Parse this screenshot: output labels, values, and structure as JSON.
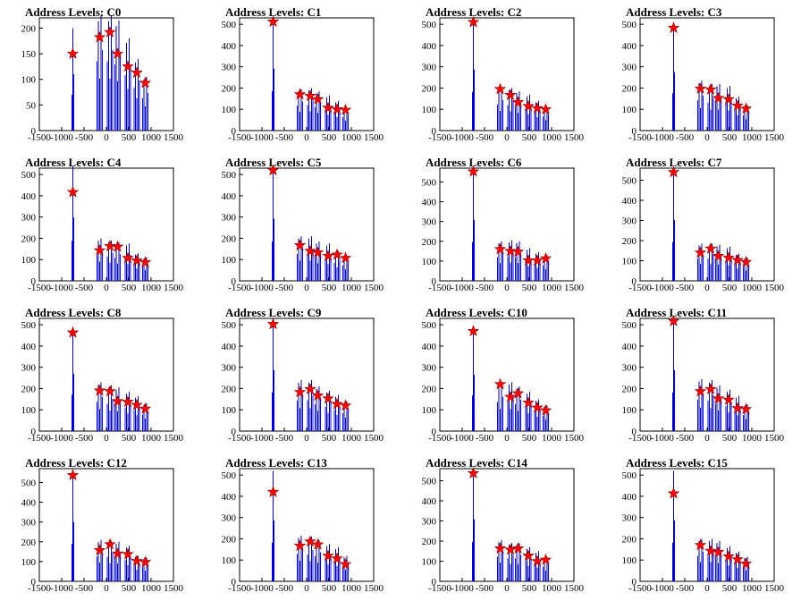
{
  "colors": {
    "spike": "#0000ff",
    "marker": "#ff0000",
    "marker_edge": "#8b0000",
    "axis": "#000000",
    "thin_spike": "#000080"
  },
  "chart_data": [
    {
      "type": "bar",
      "title": "Address Levels: C0",
      "xlim": [
        -1500,
        1500
      ],
      "ylim": [
        0,
        220
      ],
      "yticks": [
        0,
        50,
        100,
        150,
        200
      ],
      "xticks": [
        -1500,
        -1000,
        -500,
        0,
        500,
        1000,
        1500
      ],
      "spike_x": [
        -750,
        -150,
        80,
        250,
        480,
        680,
        870
      ],
      "peaks": [
        200,
        225,
        225,
        215,
        180,
        140,
        105
      ],
      "markers": [
        150,
        182,
        192,
        150,
        125,
        113,
        93
      ]
    },
    {
      "type": "bar",
      "title": "Address Levels: C1",
      "xlim": [
        -1500,
        1500
      ],
      "ylim": [
        0,
        530
      ],
      "yticks": [
        0,
        100,
        200,
        300,
        400,
        500
      ],
      "xticks": [
        -1500,
        -1000,
        -500,
        0,
        500,
        1000,
        1500
      ],
      "spike_x": [
        -750,
        -150,
        80,
        250,
        480,
        680,
        870
      ],
      "peaks": [
        530,
        195,
        200,
        185,
        165,
        140,
        105
      ],
      "markers": [
        512,
        170,
        163,
        147,
        107,
        100,
        97
      ]
    },
    {
      "type": "bar",
      "title": "Address Levels: C2",
      "xlim": [
        -1500,
        1500
      ],
      "ylim": [
        0,
        530
      ],
      "yticks": [
        0,
        100,
        200,
        300,
        400,
        500
      ],
      "xticks": [
        -1500,
        -1000,
        -500,
        0,
        500,
        1000,
        1500
      ],
      "spike_x": [
        -750,
        -150,
        80,
        250,
        480,
        680,
        870
      ],
      "peaks": [
        520,
        205,
        200,
        185,
        170,
        140,
        110
      ],
      "markers": [
        510,
        195,
        167,
        133,
        115,
        105,
        100
      ]
    },
    {
      "type": "bar",
      "title": "Address Levels: C3",
      "xlim": [
        -1500,
        1500
      ],
      "ylim": [
        0,
        530
      ],
      "yticks": [
        0,
        100,
        200,
        300,
        400,
        500
      ],
      "xticks": [
        -1500,
        -1000,
        -500,
        0,
        500,
        1000,
        1500
      ],
      "spike_x": [
        -750,
        -150,
        80,
        250,
        480,
        680,
        870
      ],
      "peaks": [
        500,
        235,
        220,
        220,
        210,
        160,
        120
      ],
      "markers": [
        483,
        197,
        193,
        153,
        147,
        117,
        103
      ]
    },
    {
      "type": "bar",
      "title": "Address Levels: C4",
      "xlim": [
        -1500,
        1500
      ],
      "ylim": [
        0,
        530
      ],
      "yticks": [
        0,
        100,
        200,
        300,
        400,
        500
      ],
      "xticks": [
        -1500,
        -1000,
        -500,
        0,
        500,
        1000,
        1500
      ],
      "spike_x": [
        -750,
        -150,
        80,
        250,
        480,
        680,
        870
      ],
      "peaks": [
        540,
        200,
        190,
        180,
        175,
        130,
        110
      ],
      "markers": [
        417,
        143,
        163,
        160,
        107,
        95,
        87
      ]
    },
    {
      "type": "bar",
      "title": "Address Levels: C5",
      "xlim": [
        -1500,
        1500
      ],
      "ylim": [
        0,
        530
      ],
      "yticks": [
        0,
        100,
        200,
        300,
        400,
        500
      ],
      "xticks": [
        -1500,
        -1000,
        -500,
        0,
        500,
        1000,
        1500
      ],
      "spike_x": [
        -750,
        -150,
        80,
        250,
        480,
        680,
        870
      ],
      "peaks": [
        530,
        210,
        210,
        185,
        175,
        140,
        120
      ],
      "markers": [
        520,
        167,
        140,
        133,
        117,
        123,
        107
      ]
    },
    {
      "type": "bar",
      "title": "Address Levels: C6",
      "xlim": [
        -1500,
        1500
      ],
      "ylim": [
        0,
        570
      ],
      "yticks": [
        0,
        100,
        200,
        300,
        400,
        500
      ],
      "xticks": [
        -1500,
        -1000,
        -500,
        0,
        500,
        1000,
        1500
      ],
      "spike_x": [
        -750,
        -150,
        80,
        250,
        480,
        680,
        870
      ],
      "peaks": [
        560,
        200,
        205,
        200,
        165,
        145,
        130
      ],
      "markers": [
        553,
        160,
        150,
        147,
        103,
        103,
        113
      ]
    },
    {
      "type": "bar",
      "title": "Address Levels: C7",
      "xlim": [
        -1500,
        1500
      ],
      "ylim": [
        0,
        560
      ],
      "yticks": [
        0,
        100,
        200,
        300,
        400,
        500
      ],
      "xticks": [
        -1500,
        -1000,
        -500,
        0,
        500,
        1000,
        1500
      ],
      "spike_x": [
        -750,
        -150,
        80,
        250,
        480,
        680,
        870
      ],
      "peaks": [
        550,
        185,
        185,
        180,
        170,
        135,
        115
      ],
      "markers": [
        540,
        140,
        160,
        123,
        115,
        103,
        93
      ]
    },
    {
      "type": "bar",
      "title": "Address Levels: C8",
      "xlim": [
        -1500,
        1500
      ],
      "ylim": [
        0,
        530
      ],
      "yticks": [
        0,
        100,
        200,
        300,
        400,
        500
      ],
      "xticks": [
        -1500,
        -1000,
        -500,
        0,
        500,
        1000,
        1500
      ],
      "spike_x": [
        -750,
        -150,
        80,
        250,
        480,
        680,
        870
      ],
      "peaks": [
        490,
        230,
        215,
        205,
        185,
        165,
        130
      ],
      "markers": [
        463,
        190,
        187,
        140,
        137,
        123,
        105
      ]
    },
    {
      "type": "bar",
      "title": "Address Levels: C9",
      "xlim": [
        -1500,
        1500
      ],
      "ylim": [
        0,
        530
      ],
      "yticks": [
        0,
        100,
        200,
        300,
        400,
        500
      ],
      "xticks": [
        -1500,
        -1000,
        -500,
        0,
        500,
        1000,
        1500
      ],
      "spike_x": [
        -750,
        -150,
        80,
        250,
        480,
        680,
        870
      ],
      "peaks": [
        520,
        240,
        240,
        210,
        190,
        170,
        140
      ],
      "markers": [
        503,
        183,
        197,
        167,
        153,
        127,
        120
      ]
    },
    {
      "type": "bar",
      "title": "Address Levels: C10",
      "xlim": [
        -1500,
        1500
      ],
      "ylim": [
        0,
        530
      ],
      "yticks": [
        0,
        100,
        200,
        300,
        400,
        500
      ],
      "xticks": [
        -1500,
        -1000,
        -500,
        0,
        500,
        1000,
        1500
      ],
      "spike_x": [
        -750,
        -150,
        80,
        250,
        480,
        680,
        870
      ],
      "peaks": [
        480,
        230,
        230,
        210,
        185,
        150,
        120
      ],
      "markers": [
        470,
        220,
        160,
        177,
        133,
        110,
        97
      ]
    },
    {
      "type": "bar",
      "title": "Address Levels: C11",
      "xlim": [
        -1500,
        1500
      ],
      "ylim": [
        0,
        530
      ],
      "yticks": [
        0,
        100,
        200,
        300,
        400,
        500
      ],
      "xticks": [
        -1500,
        -1000,
        -500,
        0,
        500,
        1000,
        1500
      ],
      "spike_x": [
        -750,
        -150,
        80,
        250,
        480,
        680,
        870
      ],
      "peaks": [
        520,
        245,
        240,
        215,
        195,
        165,
        125
      ],
      "markers": [
        517,
        187,
        197,
        153,
        147,
        107,
        103
      ]
    },
    {
      "type": "bar",
      "title": "Address Levels: C12",
      "xlim": [
        -1500,
        1500
      ],
      "ylim": [
        0,
        570
      ],
      "yticks": [
        0,
        100,
        200,
        300,
        400,
        500
      ],
      "xticks": [
        -1500,
        -1000,
        -500,
        0,
        500,
        1000,
        1500
      ],
      "spike_x": [
        -750,
        -150,
        80,
        250,
        480,
        680,
        870
      ],
      "peaks": [
        545,
        210,
        205,
        200,
        180,
        130,
        120
      ],
      "markers": [
        537,
        157,
        187,
        140,
        137,
        103,
        97
      ]
    },
    {
      "type": "bar",
      "title": "Address Levels: C13",
      "xlim": [
        -1500,
        1500
      ],
      "ylim": [
        0,
        530
      ],
      "yticks": [
        0,
        100,
        200,
        300,
        400,
        500
      ],
      "xticks": [
        -1500,
        -1000,
        -500,
        0,
        500,
        1000,
        1500
      ],
      "spike_x": [
        -750,
        -150,
        80,
        250,
        480,
        680,
        870
      ],
      "peaks": [
        520,
        215,
        210,
        195,
        175,
        160,
        120
      ],
      "markers": [
        420,
        167,
        187,
        173,
        120,
        107,
        80
      ]
    },
    {
      "type": "bar",
      "title": "Address Levels: C14",
      "xlim": [
        -1500,
        1500
      ],
      "ylim": [
        0,
        560
      ],
      "yticks": [
        0,
        100,
        200,
        300,
        400,
        500
      ],
      "xticks": [
        -1500,
        -1000,
        -500,
        0,
        500,
        1000,
        1500
      ],
      "spike_x": [
        -750,
        -150,
        80,
        250,
        480,
        680,
        870
      ],
      "peaks": [
        560,
        205,
        190,
        190,
        170,
        150,
        120
      ],
      "markers": [
        537,
        163,
        157,
        163,
        127,
        100,
        107
      ]
    },
    {
      "type": "bar",
      "title": "Address Levels: C15",
      "xlim": [
        -1500,
        1500
      ],
      "ylim": [
        0,
        530
      ],
      "yticks": [
        0,
        100,
        200,
        300,
        400,
        500
      ],
      "xticks": [
        -1500,
        -1000,
        -500,
        0,
        500,
        1000,
        1500
      ],
      "spike_x": [
        -750,
        -150,
        80,
        250,
        480,
        680,
        870
      ],
      "peaks": [
        520,
        200,
        200,
        190,
        165,
        140,
        115
      ],
      "markers": [
        413,
        170,
        143,
        137,
        117,
        103,
        83
      ]
    }
  ]
}
